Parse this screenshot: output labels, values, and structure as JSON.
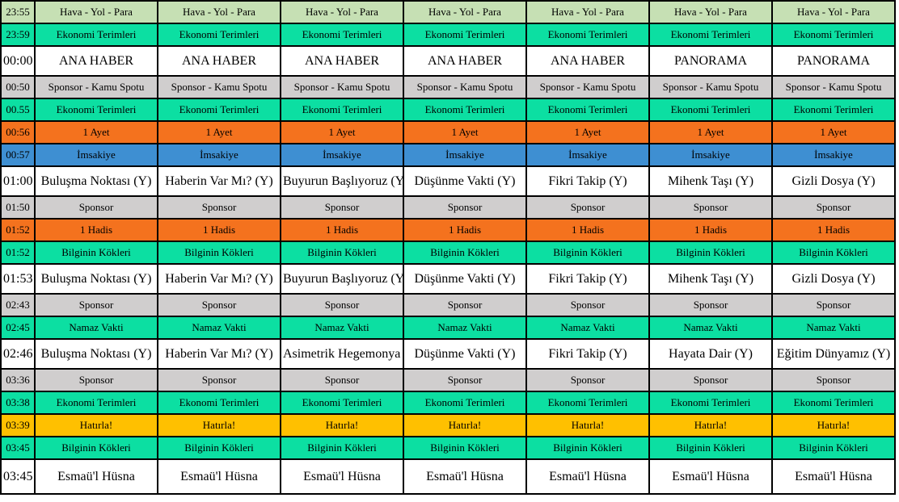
{
  "colors": {
    "lightgreen": "#C6E0B4",
    "green": "#0CDFA2",
    "white": "#FFFFFF",
    "gray": "#D0CECE",
    "orange": "#F4721E",
    "blue": "#3E8FD2",
    "yellow": "#FFC000",
    "border": "#000000",
    "text": "#000000"
  },
  "schedule": {
    "columns_count": 7,
    "rows": [
      {
        "time": "23:55",
        "style": "lightgreen",
        "cells": [
          "Hava - Yol - Para",
          "Hava - Yol - Para",
          "Hava - Yol - Para",
          "Hava - Yol - Para",
          "Hava - Yol - Para",
          "Hava - Yol - Para",
          "Hava - Yol - Para"
        ]
      },
      {
        "time": "23:59",
        "style": "green",
        "cells": [
          "Ekonomi Terimleri",
          "Ekonomi Terimleri",
          "Ekonomi Terimleri",
          "Ekonomi Terimleri",
          "Ekonomi Terimleri",
          "Ekonomi Terimleri",
          "Ekonomi Terimleri"
        ]
      },
      {
        "time": "00:00",
        "style": "white",
        "cells": [
          "ANA HABER",
          "ANA HABER",
          "ANA HABER",
          "ANA HABER",
          "ANA HABER",
          "PANORAMA",
          "PANORAMA"
        ]
      },
      {
        "time": "00:50",
        "style": "gray",
        "cells": [
          "Sponsor - Kamu Spotu",
          "Sponsor - Kamu Spotu",
          "Sponsor - Kamu Spotu",
          "Sponsor - Kamu Spotu",
          "Sponsor - Kamu Spotu",
          "Sponsor - Kamu Spotu",
          "Sponsor - Kamu Spotu"
        ]
      },
      {
        "time": "00.55",
        "style": "green",
        "cells": [
          "Ekonomi Terimleri",
          "Ekonomi Terimleri",
          "Ekonomi Terimleri",
          "Ekonomi Terimleri",
          "Ekonomi Terimleri",
          "Ekonomi Terimleri",
          "Ekonomi Terimleri"
        ]
      },
      {
        "time": "00:56",
        "style": "orange",
        "cells": [
          "1 Ayet",
          "1 Ayet",
          "1 Ayet",
          "1 Ayet",
          "1 Ayet",
          "1 Ayet",
          "1 Ayet"
        ]
      },
      {
        "time": "00:57",
        "style": "blue",
        "cells": [
          "İmsakiye",
          "İmsakiye",
          "İmsakiye",
          "İmsakiye",
          "İmsakiye",
          "İmsakiye",
          "İmsakiye"
        ]
      },
      {
        "time": "01:00",
        "style": "white",
        "cells": [
          "Buluşma Noktası (Y)",
          "Haberin Var Mı? (Y)",
          "Buyurun Başlıyoruz (Y)",
          "Düşünme Vakti (Y)",
          "Fikri Takip (Y)",
          "Mihenk Taşı (Y)",
          "Gizli Dosya (Y)"
        ]
      },
      {
        "time": "01:50",
        "style": "gray",
        "cells": [
          "Sponsor",
          "Sponsor",
          "Sponsor",
          "Sponsor",
          "Sponsor",
          "Sponsor",
          "Sponsor"
        ]
      },
      {
        "time": "01:52",
        "style": "orange",
        "cells": [
          "1 Hadis",
          "1 Hadis",
          "1 Hadis",
          "1 Hadis",
          "1 Hadis",
          "1 Hadis",
          "1 Hadis"
        ]
      },
      {
        "time": "01:52",
        "style": "green",
        "cells": [
          "Bilginin Kökleri",
          "Bilginin Kökleri",
          "Bilginin Kökleri",
          "Bilginin Kökleri",
          "Bilginin Kökleri",
          "Bilginin Kökleri",
          "Bilginin Kökleri"
        ]
      },
      {
        "time": "01:53",
        "style": "white",
        "cells": [
          "Buluşma Noktası (Y)",
          "Haberin Var Mı? (Y)",
          "Buyurun Başlıyoruz (Y)",
          "Düşünme Vakti (Y)",
          "Fikri Takip (Y)",
          "Mihenk Taşı (Y)",
          "Gizli Dosya (Y)"
        ]
      },
      {
        "time": "02:43",
        "style": "gray",
        "cells": [
          "Sponsor",
          "Sponsor",
          "Sponsor",
          "Sponsor",
          "Sponsor",
          "Sponsor",
          "Sponsor"
        ]
      },
      {
        "time": "02:45",
        "style": "green",
        "cells": [
          "Namaz Vakti",
          "Namaz Vakti",
          "Namaz Vakti",
          "Namaz Vakti",
          "Namaz Vakti",
          "Namaz Vakti",
          "Namaz Vakti"
        ]
      },
      {
        "time": "02:46",
        "style": "white",
        "cells": [
          "Buluşma Noktası (Y)",
          "Haberin Var Mı? (Y)",
          "Asimetrik Hegemonya (Y)",
          "Düşünme Vakti (Y)",
          "Fikri Takip (Y)",
          "Hayata Dair (Y)",
          "Eğitim Dünyamız (Y)"
        ]
      },
      {
        "time": "03:36",
        "style": "gray",
        "cells": [
          "Sponsor",
          "Sponsor",
          "Sponsor",
          "Sponsor",
          "Sponsor",
          "Sponsor",
          "Sponsor"
        ]
      },
      {
        "time": "03:38",
        "style": "green",
        "cells": [
          "Ekonomi Terimleri",
          "Ekonomi Terimleri",
          "Ekonomi Terimleri",
          "Ekonomi Terimleri",
          "Ekonomi Terimleri",
          "Ekonomi Terimleri",
          "Ekonomi Terimleri"
        ]
      },
      {
        "time": "03:39",
        "style": "yellow",
        "cells": [
          "Hatırla!",
          "Hatırla!",
          "Hatırla!",
          "Hatırla!",
          "Hatırla!",
          "Hatırla!",
          "Hatırla!"
        ]
      },
      {
        "time": "03:45",
        "style": "green",
        "cells": [
          "Bilginin Kökleri",
          "Bilginin Kökleri",
          "Bilginin Kökleri",
          "Bilginin Kökleri",
          "Bilginin Kökleri",
          "Bilginin Kökleri",
          "Bilginin Kökleri"
        ]
      },
      {
        "time": "03:45",
        "style": "white",
        "cells": [
          "Esmaü'l Hüsna",
          "Esmaü'l Hüsna",
          "Esmaü'l Hüsna",
          "Esmaü'l Hüsna",
          "Esmaü'l Hüsna",
          "Esmaü'l Hüsna",
          "Esmaü'l Hüsna"
        ]
      }
    ]
  }
}
